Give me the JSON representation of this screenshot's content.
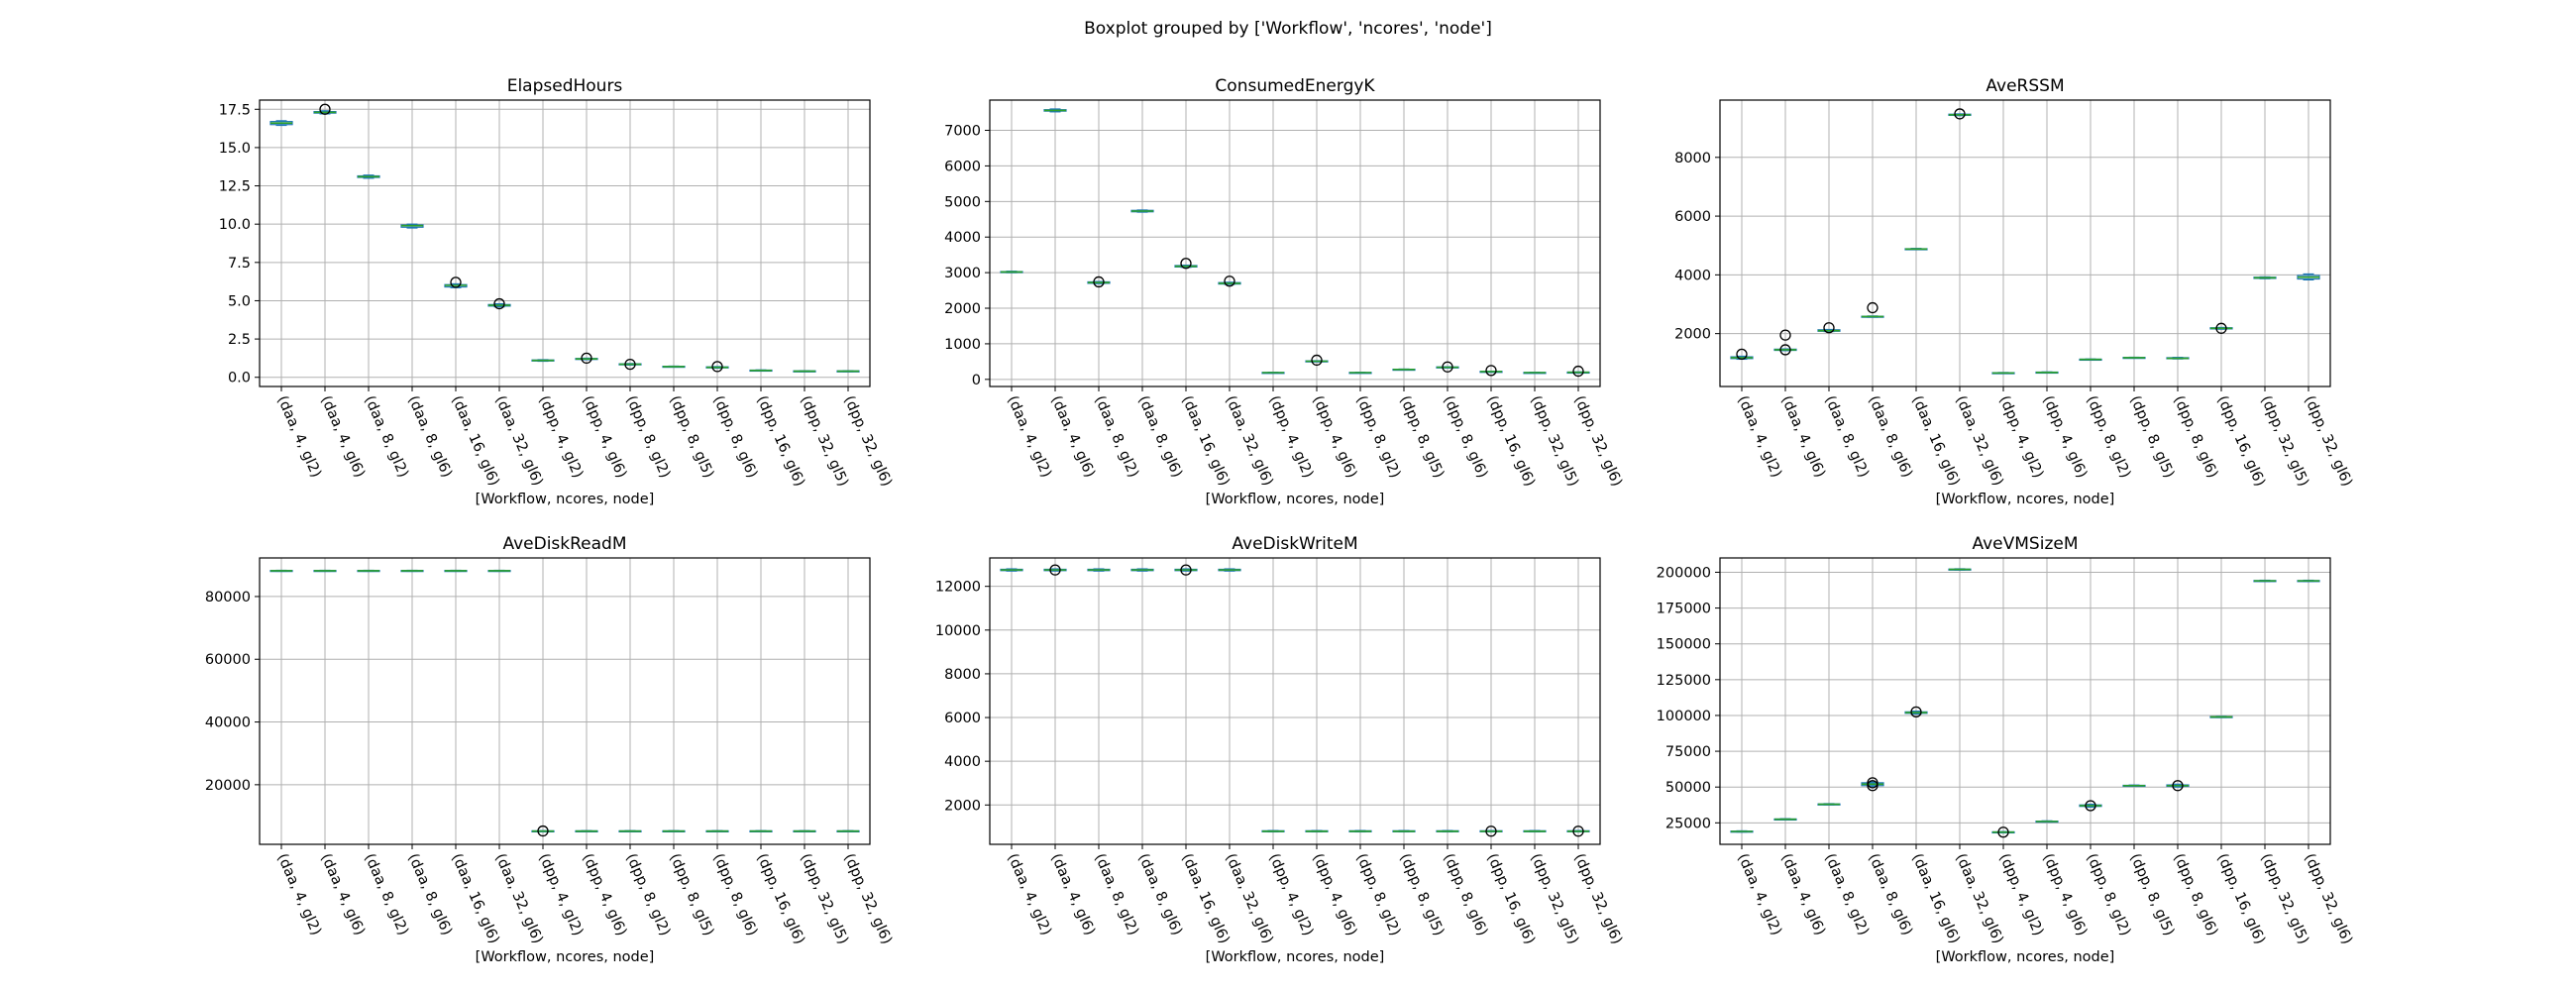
{
  "figure": {
    "suptitle": "Boxplot grouped by ['Workflow', 'ncores', 'node']"
  },
  "colors": {
    "box": "#1f77b4",
    "median": "#2ca02c",
    "grid": "#b0b0b0",
    "flier_edge": "#000000"
  },
  "chart_data": [
    {
      "type": "box",
      "title": "ElapsedHours",
      "xlabel": "[Workflow, ncores, node]",
      "categories": [
        "(daa, 4, gl2)",
        "(daa, 4, gl6)",
        "(daa, 8, gl2)",
        "(daa, 8, gl6)",
        "(daa, 16, gl6)",
        "(daa, 32, gl6)",
        "(dpp, 4, gl2)",
        "(dpp, 4, gl6)",
        "(dpp, 8, gl2)",
        "(dpp, 8, gl5)",
        "(dpp, 8, gl6)",
        "(dpp, 16, gl6)",
        "(dpp, 32, gl5)",
        "(dpp, 32, gl6)"
      ],
      "ylim": [
        -0.6,
        18.1
      ],
      "yticks": [
        0.0,
        2.5,
        5.0,
        7.5,
        10.0,
        12.5,
        15.0,
        17.5
      ],
      "ytick_labels": [
        "0.0",
        "2.5",
        "5.0",
        "7.5",
        "10.0",
        "12.5",
        "15.0",
        "17.5"
      ],
      "grid": true,
      "boxes": [
        {
          "med": 16.6,
          "q1": 16.5,
          "q3": 16.7,
          "lo": 16.45,
          "hi": 16.75,
          "fliers": []
        },
        {
          "med": 17.3,
          "q1": 17.25,
          "q3": 17.35,
          "lo": 17.2,
          "hi": 17.4,
          "fliers": [
            17.5
          ]
        },
        {
          "med": 13.1,
          "q1": 13.05,
          "q3": 13.15,
          "lo": 13.0,
          "hi": 13.2,
          "fliers": []
        },
        {
          "med": 9.9,
          "q1": 9.8,
          "q3": 9.95,
          "lo": 9.75,
          "hi": 10.0,
          "fliers": []
        },
        {
          "med": 6.0,
          "q1": 5.9,
          "q3": 6.05,
          "lo": 5.85,
          "hi": 6.1,
          "fliers": [
            6.2
          ]
        },
        {
          "med": 4.7,
          "q1": 4.65,
          "q3": 4.75,
          "lo": 4.6,
          "hi": 4.8,
          "fliers": [
            4.8
          ]
        },
        {
          "med": 1.1,
          "q1": 1.07,
          "q3": 1.13,
          "lo": 1.05,
          "hi": 1.15,
          "fliers": []
        },
        {
          "med": 1.2,
          "q1": 1.17,
          "q3": 1.23,
          "lo": 1.15,
          "hi": 1.25,
          "fliers": [
            1.25
          ]
        },
        {
          "med": 0.85,
          "q1": 0.82,
          "q3": 0.88,
          "lo": 0.8,
          "hi": 0.9,
          "fliers": [
            0.85
          ]
        },
        {
          "med": 0.7,
          "q1": 0.68,
          "q3": 0.72,
          "lo": 0.67,
          "hi": 0.73,
          "fliers": []
        },
        {
          "med": 0.65,
          "q1": 0.62,
          "q3": 0.68,
          "lo": 0.6,
          "hi": 0.7,
          "fliers": [
            0.7
          ]
        },
        {
          "med": 0.45,
          "q1": 0.43,
          "q3": 0.47,
          "lo": 0.42,
          "hi": 0.48,
          "fliers": []
        },
        {
          "med": 0.4,
          "q1": 0.38,
          "q3": 0.42,
          "lo": 0.37,
          "hi": 0.43,
          "fliers": []
        },
        {
          "med": 0.4,
          "q1": 0.38,
          "q3": 0.42,
          "lo": 0.37,
          "hi": 0.43,
          "fliers": []
        }
      ]
    },
    {
      "type": "box",
      "title": "ConsumedEnergyK",
      "xlabel": "[Workflow, ncores, node]",
      "categories": [
        "(daa, 4, gl2)",
        "(daa, 4, gl6)",
        "(daa, 8, gl2)",
        "(daa, 8, gl6)",
        "(daa, 16, gl6)",
        "(daa, 32, gl6)",
        "(dpp, 4, gl2)",
        "(dpp, 4, gl6)",
        "(dpp, 8, gl2)",
        "(dpp, 8, gl5)",
        "(dpp, 8, gl6)",
        "(dpp, 16, gl6)",
        "(dpp, 32, gl5)",
        "(dpp, 32, gl6)"
      ],
      "ylim": [
        -200,
        7850
      ],
      "yticks": [
        0,
        1000,
        2000,
        3000,
        4000,
        5000,
        6000,
        7000
      ],
      "ytick_labels": [
        "0",
        "1000",
        "2000",
        "3000",
        "4000",
        "5000",
        "6000",
        "7000"
      ],
      "grid": true,
      "boxes": [
        {
          "med": 3020,
          "q1": 3010,
          "q3": 3030,
          "lo": 3000,
          "hi": 3040,
          "fliers": []
        },
        {
          "med": 7560,
          "q1": 7540,
          "q3": 7580,
          "lo": 7520,
          "hi": 7600,
          "fliers": []
        },
        {
          "med": 2720,
          "q1": 2700,
          "q3": 2740,
          "lo": 2690,
          "hi": 2750,
          "fliers": [
            2740
          ]
        },
        {
          "med": 4730,
          "q1": 4710,
          "q3": 4750,
          "lo": 4700,
          "hi": 4760,
          "fliers": []
        },
        {
          "med": 3180,
          "q1": 3160,
          "q3": 3200,
          "lo": 3150,
          "hi": 3210,
          "fliers": [
            3260
          ]
        },
        {
          "med": 2700,
          "q1": 2680,
          "q3": 2720,
          "lo": 2670,
          "hi": 2730,
          "fliers": [
            2760
          ]
        },
        {
          "med": 190,
          "q1": 185,
          "q3": 195,
          "lo": 180,
          "hi": 200,
          "fliers": []
        },
        {
          "med": 510,
          "q1": 500,
          "q3": 520,
          "lo": 495,
          "hi": 525,
          "fliers": [
            540
          ]
        },
        {
          "med": 190,
          "q1": 185,
          "q3": 195,
          "lo": 180,
          "hi": 200,
          "fliers": []
        },
        {
          "med": 280,
          "q1": 275,
          "q3": 285,
          "lo": 270,
          "hi": 290,
          "fliers": []
        },
        {
          "med": 340,
          "q1": 330,
          "q3": 350,
          "lo": 325,
          "hi": 355,
          "fliers": [
            350
          ]
        },
        {
          "med": 220,
          "q1": 215,
          "q3": 225,
          "lo": 210,
          "hi": 230,
          "fliers": [
            250
          ]
        },
        {
          "med": 190,
          "q1": 185,
          "q3": 195,
          "lo": 180,
          "hi": 200,
          "fliers": []
        },
        {
          "med": 200,
          "q1": 195,
          "q3": 205,
          "lo": 190,
          "hi": 210,
          "fliers": [
            230
          ]
        }
      ]
    },
    {
      "type": "box",
      "title": "AveRSSM",
      "xlabel": "[Workflow, ncores, node]",
      "categories": [
        "(daa, 4, gl2)",
        "(daa, 4, gl6)",
        "(daa, 8, gl2)",
        "(daa, 8, gl6)",
        "(daa, 16, gl6)",
        "(daa, 32, gl6)",
        "(dpp, 4, gl2)",
        "(dpp, 4, gl6)",
        "(dpp, 8, gl2)",
        "(dpp, 8, gl5)",
        "(dpp, 8, gl6)",
        "(dpp, 16, gl6)",
        "(dpp, 32, gl5)",
        "(dpp, 32, gl6)"
      ],
      "ylim": [
        200,
        9950
      ],
      "yticks": [
        2000,
        4000,
        6000,
        8000
      ],
      "ytick_labels": [
        "2000",
        "4000",
        "6000",
        "8000"
      ],
      "grid": true,
      "boxes": [
        {
          "med": 1180,
          "q1": 1150,
          "q3": 1210,
          "lo": 1130,
          "hi": 1230,
          "fliers": [
            1300
          ]
        },
        {
          "med": 1450,
          "q1": 1430,
          "q3": 1470,
          "lo": 1420,
          "hi": 1480,
          "fliers": [
            1450,
            1950
          ]
        },
        {
          "med": 2100,
          "q1": 2080,
          "q3": 2130,
          "lo": 2070,
          "hi": 2140,
          "fliers": [
            2200
          ]
        },
        {
          "med": 2580,
          "q1": 2570,
          "q3": 2590,
          "lo": 2560,
          "hi": 2600,
          "fliers": [
            2880
          ]
        },
        {
          "med": 4880,
          "q1": 4870,
          "q3": 4890,
          "lo": 4860,
          "hi": 4900,
          "fliers": []
        },
        {
          "med": 9450,
          "q1": 9430,
          "q3": 9470,
          "lo": 9420,
          "hi": 9480,
          "fliers": [
            9480
          ]
        },
        {
          "med": 660,
          "q1": 650,
          "q3": 670,
          "lo": 645,
          "hi": 675,
          "fliers": []
        },
        {
          "med": 680,
          "q1": 670,
          "q3": 690,
          "lo": 665,
          "hi": 695,
          "fliers": []
        },
        {
          "med": 1120,
          "q1": 1110,
          "q3": 1130,
          "lo": 1105,
          "hi": 1135,
          "fliers": []
        },
        {
          "med": 1180,
          "q1": 1170,
          "q3": 1190,
          "lo": 1165,
          "hi": 1195,
          "fliers": []
        },
        {
          "med": 1160,
          "q1": 1150,
          "q3": 1180,
          "lo": 1140,
          "hi": 1190,
          "fliers": []
        },
        {
          "med": 2180,
          "q1": 2160,
          "q3": 2200,
          "lo": 2150,
          "hi": 2210,
          "fliers": [
            2180
          ]
        },
        {
          "med": 3900,
          "q1": 3880,
          "q3": 3920,
          "lo": 3870,
          "hi": 3930,
          "fliers": []
        },
        {
          "med": 3920,
          "q1": 3860,
          "q3": 3980,
          "lo": 3830,
          "hi": 4030,
          "fliers": []
        }
      ]
    },
    {
      "type": "box",
      "title": "AveDiskReadM",
      "xlabel": "[Workflow, ncores, node]",
      "categories": [
        "(daa, 4, gl2)",
        "(daa, 4, gl6)",
        "(daa, 8, gl2)",
        "(daa, 8, gl6)",
        "(daa, 16, gl6)",
        "(daa, 32, gl6)",
        "(dpp, 4, gl2)",
        "(dpp, 4, gl6)",
        "(dpp, 8, gl2)",
        "(dpp, 8, gl5)",
        "(dpp, 8, gl6)",
        "(dpp, 16, gl6)",
        "(dpp, 32, gl5)",
        "(dpp, 32, gl6)"
      ],
      "ylim": [
        1000,
        92300
      ],
      "yticks": [
        20000,
        40000,
        60000,
        80000
      ],
      "ytick_labels": [
        "20000",
        "40000",
        "60000",
        "80000"
      ],
      "grid": true,
      "boxes": [
        {
          "med": 88200,
          "q1": 88100,
          "q3": 88300,
          "lo": 88050,
          "hi": 88350,
          "fliers": []
        },
        {
          "med": 88200,
          "q1": 88100,
          "q3": 88300,
          "lo": 88050,
          "hi": 88350,
          "fliers": []
        },
        {
          "med": 88200,
          "q1": 88100,
          "q3": 88300,
          "lo": 88050,
          "hi": 88350,
          "fliers": []
        },
        {
          "med": 88200,
          "q1": 88100,
          "q3": 88300,
          "lo": 88050,
          "hi": 88350,
          "fliers": []
        },
        {
          "med": 88200,
          "q1": 88100,
          "q3": 88300,
          "lo": 88050,
          "hi": 88350,
          "fliers": []
        },
        {
          "med": 88200,
          "q1": 88100,
          "q3": 88300,
          "lo": 88050,
          "hi": 88350,
          "fliers": []
        },
        {
          "med": 5200,
          "q1": 5100,
          "q3": 5300,
          "lo": 5050,
          "hi": 5350,
          "fliers": [
            5250
          ]
        },
        {
          "med": 5200,
          "q1": 5100,
          "q3": 5300,
          "lo": 5050,
          "hi": 5350,
          "fliers": []
        },
        {
          "med": 5200,
          "q1": 5100,
          "q3": 5300,
          "lo": 5050,
          "hi": 5350,
          "fliers": []
        },
        {
          "med": 5200,
          "q1": 5100,
          "q3": 5300,
          "lo": 5050,
          "hi": 5350,
          "fliers": []
        },
        {
          "med": 5200,
          "q1": 5100,
          "q3": 5300,
          "lo": 5050,
          "hi": 5350,
          "fliers": []
        },
        {
          "med": 5200,
          "q1": 5100,
          "q3": 5300,
          "lo": 5050,
          "hi": 5350,
          "fliers": []
        },
        {
          "med": 5200,
          "q1": 5100,
          "q3": 5300,
          "lo": 5050,
          "hi": 5350,
          "fliers": []
        },
        {
          "med": 5200,
          "q1": 5100,
          "q3": 5300,
          "lo": 5050,
          "hi": 5350,
          "fliers": []
        }
      ]
    },
    {
      "type": "box",
      "title": "AveDiskWriteM",
      "xlabel": "[Workflow, ncores, node]",
      "categories": [
        "(daa, 4, gl2)",
        "(daa, 4, gl6)",
        "(daa, 8, gl2)",
        "(daa, 8, gl6)",
        "(daa, 16, gl6)",
        "(daa, 32, gl6)",
        "(dpp, 4, gl2)",
        "(dpp, 4, gl6)",
        "(dpp, 8, gl2)",
        "(dpp, 8, gl5)",
        "(dpp, 8, gl6)",
        "(dpp, 16, gl6)",
        "(dpp, 32, gl5)",
        "(dpp, 32, gl6)"
      ],
      "ylim": [
        200,
        13300
      ],
      "yticks": [
        2000,
        4000,
        6000,
        8000,
        10000,
        12000
      ],
      "ytick_labels": [
        "2000",
        "4000",
        "6000",
        "8000",
        "10000",
        "12000"
      ],
      "grid": true,
      "boxes": [
        {
          "med": 12750,
          "q1": 12720,
          "q3": 12780,
          "lo": 12700,
          "hi": 12800,
          "fliers": []
        },
        {
          "med": 12750,
          "q1": 12720,
          "q3": 12780,
          "lo": 12700,
          "hi": 12800,
          "fliers": [
            12750
          ]
        },
        {
          "med": 12750,
          "q1": 12720,
          "q3": 12780,
          "lo": 12700,
          "hi": 12800,
          "fliers": []
        },
        {
          "med": 12750,
          "q1": 12720,
          "q3": 12780,
          "lo": 12700,
          "hi": 12800,
          "fliers": []
        },
        {
          "med": 12750,
          "q1": 12720,
          "q3": 12780,
          "lo": 12700,
          "hi": 12800,
          "fliers": [
            12750
          ]
        },
        {
          "med": 12750,
          "q1": 12720,
          "q3": 12780,
          "lo": 12700,
          "hi": 12800,
          "fliers": []
        },
        {
          "med": 800,
          "q1": 780,
          "q3": 820,
          "lo": 770,
          "hi": 830,
          "fliers": []
        },
        {
          "med": 800,
          "q1": 780,
          "q3": 820,
          "lo": 770,
          "hi": 830,
          "fliers": []
        },
        {
          "med": 800,
          "q1": 780,
          "q3": 820,
          "lo": 770,
          "hi": 830,
          "fliers": []
        },
        {
          "med": 800,
          "q1": 780,
          "q3": 820,
          "lo": 770,
          "hi": 830,
          "fliers": []
        },
        {
          "med": 800,
          "q1": 780,
          "q3": 820,
          "lo": 770,
          "hi": 830,
          "fliers": []
        },
        {
          "med": 800,
          "q1": 780,
          "q3": 820,
          "lo": 770,
          "hi": 830,
          "fliers": [
            800
          ]
        },
        {
          "med": 800,
          "q1": 780,
          "q3": 820,
          "lo": 770,
          "hi": 830,
          "fliers": []
        },
        {
          "med": 800,
          "q1": 780,
          "q3": 820,
          "lo": 770,
          "hi": 830,
          "fliers": [
            800
          ]
        }
      ]
    },
    {
      "type": "box",
      "title": "AveVMSizeM",
      "xlabel": "[Workflow, ncores, node]",
      "categories": [
        "(daa, 4, gl2)",
        "(daa, 4, gl6)",
        "(daa, 8, gl2)",
        "(daa, 8, gl6)",
        "(daa, 16, gl6)",
        "(daa, 32, gl6)",
        "(dpp, 4, gl2)",
        "(dpp, 4, gl6)",
        "(dpp, 8, gl2)",
        "(dpp, 8, gl5)",
        "(dpp, 8, gl6)",
        "(dpp, 16, gl6)",
        "(dpp, 32, gl5)",
        "(dpp, 32, gl6)"
      ],
      "ylim": [
        10000,
        210000
      ],
      "yticks": [
        25000,
        50000,
        75000,
        100000,
        125000,
        150000,
        175000,
        200000
      ],
      "ytick_labels": [
        "25000",
        "50000",
        "75000",
        "100000",
        "125000",
        "150000",
        "175000",
        "200000"
      ],
      "grid": true,
      "boxes": [
        {
          "med": 19000,
          "q1": 18800,
          "q3": 19200,
          "lo": 18600,
          "hi": 19400,
          "fliers": []
        },
        {
          "med": 27500,
          "q1": 27300,
          "q3": 27700,
          "lo": 27100,
          "hi": 27900,
          "fliers": []
        },
        {
          "med": 38000,
          "q1": 37800,
          "q3": 38200,
          "lo": 37600,
          "hi": 38400,
          "fliers": []
        },
        {
          "med": 52000,
          "q1": 51000,
          "q3": 53000,
          "lo": 50500,
          "hi": 53500,
          "fliers": [
            51000,
            53000
          ]
        },
        {
          "med": 102000,
          "q1": 101500,
          "q3": 102500,
          "lo": 101000,
          "hi": 103000,
          "fliers": [
            102500
          ]
        },
        {
          "med": 202000,
          "q1": 201800,
          "q3": 202200,
          "lo": 201600,
          "hi": 202400,
          "fliers": []
        },
        {
          "med": 18500,
          "q1": 18300,
          "q3": 18700,
          "lo": 18100,
          "hi": 18900,
          "fliers": [
            18500
          ]
        },
        {
          "med": 26000,
          "q1": 25800,
          "q3": 26200,
          "lo": 25600,
          "hi": 26400,
          "fliers": []
        },
        {
          "med": 37000,
          "q1": 36500,
          "q3": 37500,
          "lo": 36000,
          "hi": 38000,
          "fliers": [
            37000
          ]
        },
        {
          "med": 51000,
          "q1": 50800,
          "q3": 51200,
          "lo": 50600,
          "hi": 51400,
          "fliers": []
        },
        {
          "med": 51000,
          "q1": 50500,
          "q3": 51500,
          "lo": 50000,
          "hi": 52000,
          "fliers": [
            51000
          ]
        },
        {
          "med": 99000,
          "q1": 98800,
          "q3": 99200,
          "lo": 98600,
          "hi": 99400,
          "fliers": []
        },
        {
          "med": 194000,
          "q1": 193800,
          "q3": 194200,
          "lo": 193600,
          "hi": 194400,
          "fliers": []
        },
        {
          "med": 194000,
          "q1": 193800,
          "q3": 194200,
          "lo": 193600,
          "hi": 194400,
          "fliers": []
        }
      ]
    }
  ]
}
